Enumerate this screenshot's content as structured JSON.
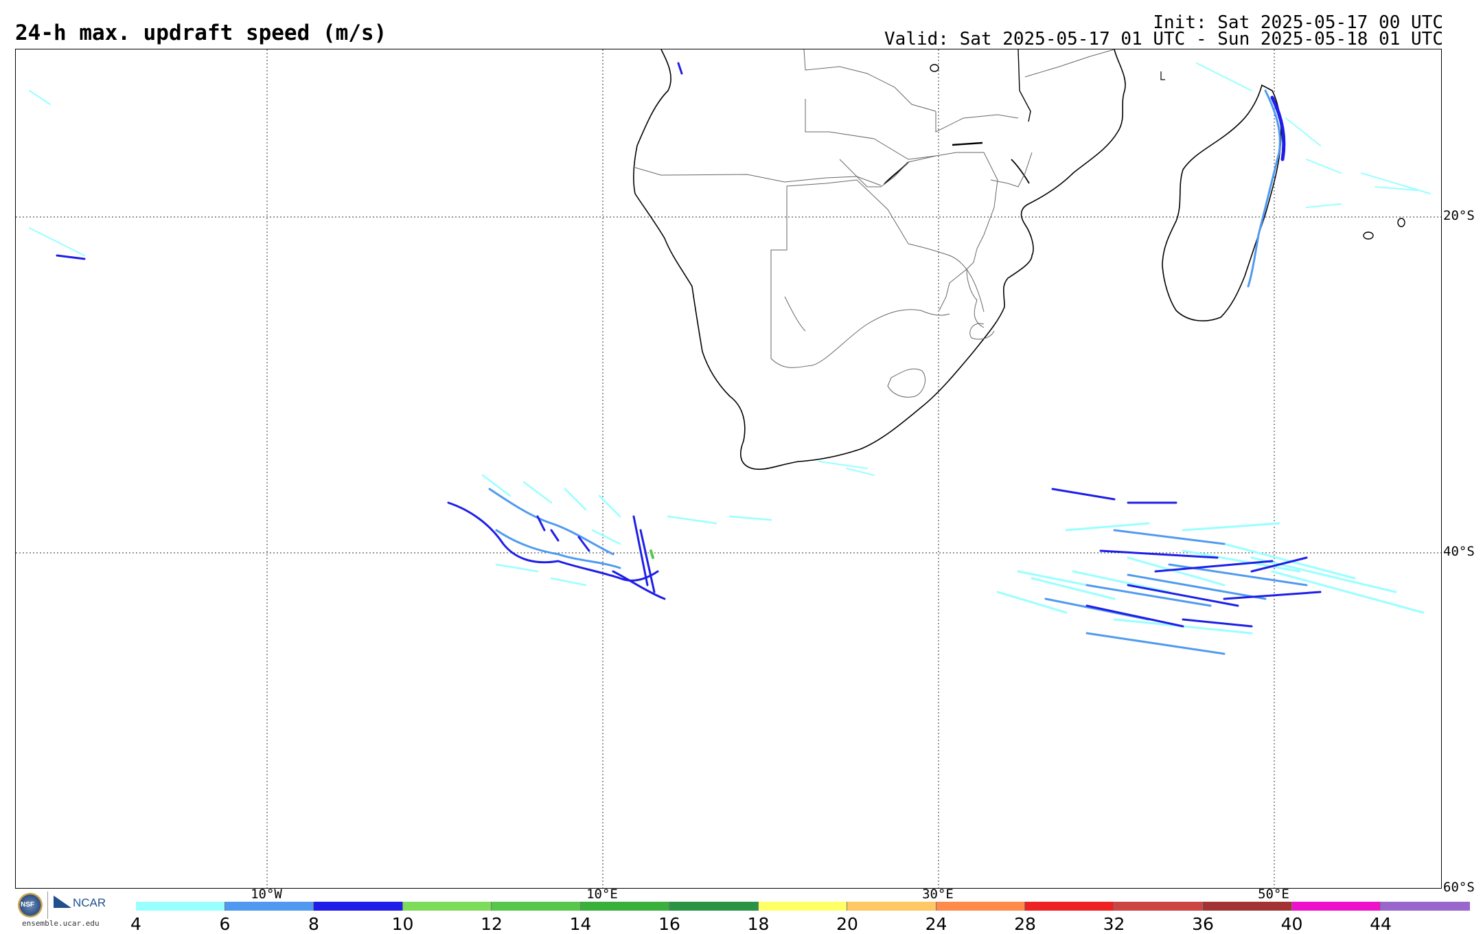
{
  "header": {
    "title": "24-h max. updraft speed (m/s)",
    "init": "Init: Sat 2025-05-17 00 UTC",
    "valid": "Valid: Sat 2025-05-17 01 UTC - Sun 2025-05-18 01 UTC"
  },
  "map": {
    "lat_labels": [
      "20°S",
      "40°S",
      "60°S"
    ],
    "lon_labels": [
      "10°W",
      "10°E",
      "30°E",
      "50°E"
    ]
  },
  "logos": {
    "nsf": "NSF",
    "ncar": "NCAR",
    "site": "ensemble.ucar.edu"
  },
  "colorbar": {
    "ticks": [
      "4",
      "6",
      "8",
      "10",
      "12",
      "14",
      "16",
      "18",
      "20",
      "24",
      "28",
      "32",
      "36",
      "40",
      "44"
    ],
    "colors": [
      "#99ffff",
      "#4f9af0",
      "#1e1ee8",
      "#7ddc5a",
      "#56c74a",
      "#39b03c",
      "#2a9444",
      "#ffff66",
      "#ffc864",
      "#ff8a4a",
      "#ee2222",
      "#cc4444",
      "#a33333",
      "#ee11cc",
      "#9966cc"
    ]
  }
}
